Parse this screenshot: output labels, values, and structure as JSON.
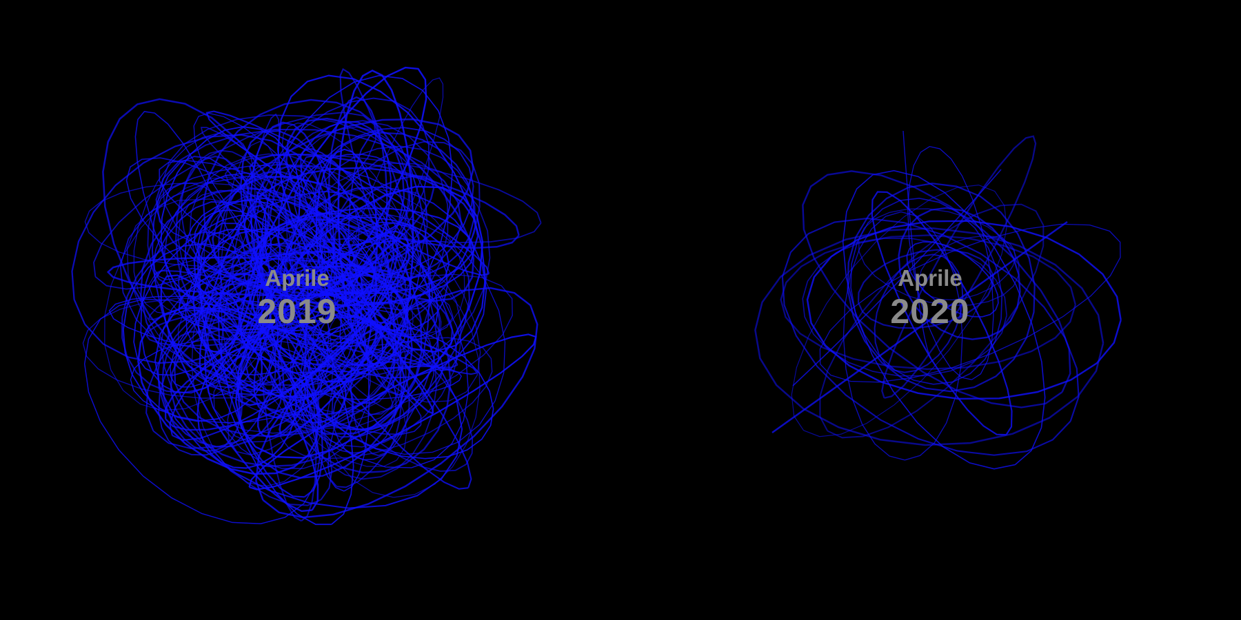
{
  "colors": {
    "background": "#000000",
    "scribble": "#1010ff",
    "text": "#8a8a8a"
  },
  "panels": [
    {
      "month": "Aprile",
      "year": "2019",
      "density": "dense"
    },
    {
      "month": "Aprile",
      "year": "2020",
      "density": "sparse"
    }
  ]
}
